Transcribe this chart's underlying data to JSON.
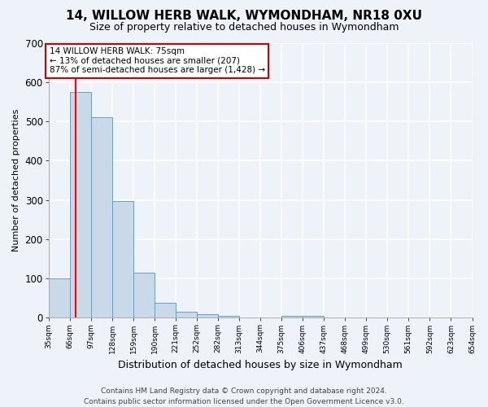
{
  "title": "14, WILLOW HERB WALK, WYMONDHAM, NR18 0XU",
  "subtitle": "Size of property relative to detached houses in Wymondham",
  "xlabel": "Distribution of detached houses by size in Wymondham",
  "ylabel": "Number of detached properties",
  "footer1": "Contains HM Land Registry data © Crown copyright and database right 2024.",
  "footer2": "Contains public sector information licensed under the Open Government Licence v3.0.",
  "annotation_line1": "14 WILLOW HERB WALK: 75sqm",
  "annotation_line2": "← 13% of detached houses are smaller (207)",
  "annotation_line3": "87% of semi-detached houses are larger (1,428) →",
  "bar_color": "#c9d9e8",
  "bar_edge_color": "#6a9fc0",
  "red_line_x": 75,
  "bins": [
    35,
    66,
    97,
    128,
    159,
    190,
    221,
    252,
    282,
    313,
    344,
    375,
    406,
    437,
    468,
    499,
    530,
    561,
    592,
    623,
    654
  ],
  "bin_labels": [
    "35sqm",
    "66sqm",
    "97sqm",
    "128sqm",
    "159sqm",
    "190sqm",
    "221sqm",
    "252sqm",
    "282sqm",
    "313sqm",
    "344sqm",
    "375sqm",
    "406sqm",
    "437sqm",
    "468sqm",
    "499sqm",
    "530sqm",
    "561sqm",
    "592sqm",
    "623sqm",
    "654sqm"
  ],
  "counts": [
    100,
    575,
    510,
    298,
    115,
    37,
    15,
    8,
    5,
    0,
    0,
    5,
    5,
    0,
    0,
    0,
    0,
    0,
    0,
    0
  ],
  "ylim": [
    0,
    700
  ],
  "yticks": [
    0,
    100,
    200,
    300,
    400,
    500,
    600,
    700
  ],
  "background_color": "#eef2f9",
  "grid_color": "#ffffff",
  "annotation_box_color": "#ffffff",
  "annotation_box_edge": "#cc0000",
  "title_fontsize": 11,
  "subtitle_fontsize": 9,
  "ylabel_fontsize": 8,
  "xlabel_fontsize": 9,
  "footer_fontsize": 6.5
}
